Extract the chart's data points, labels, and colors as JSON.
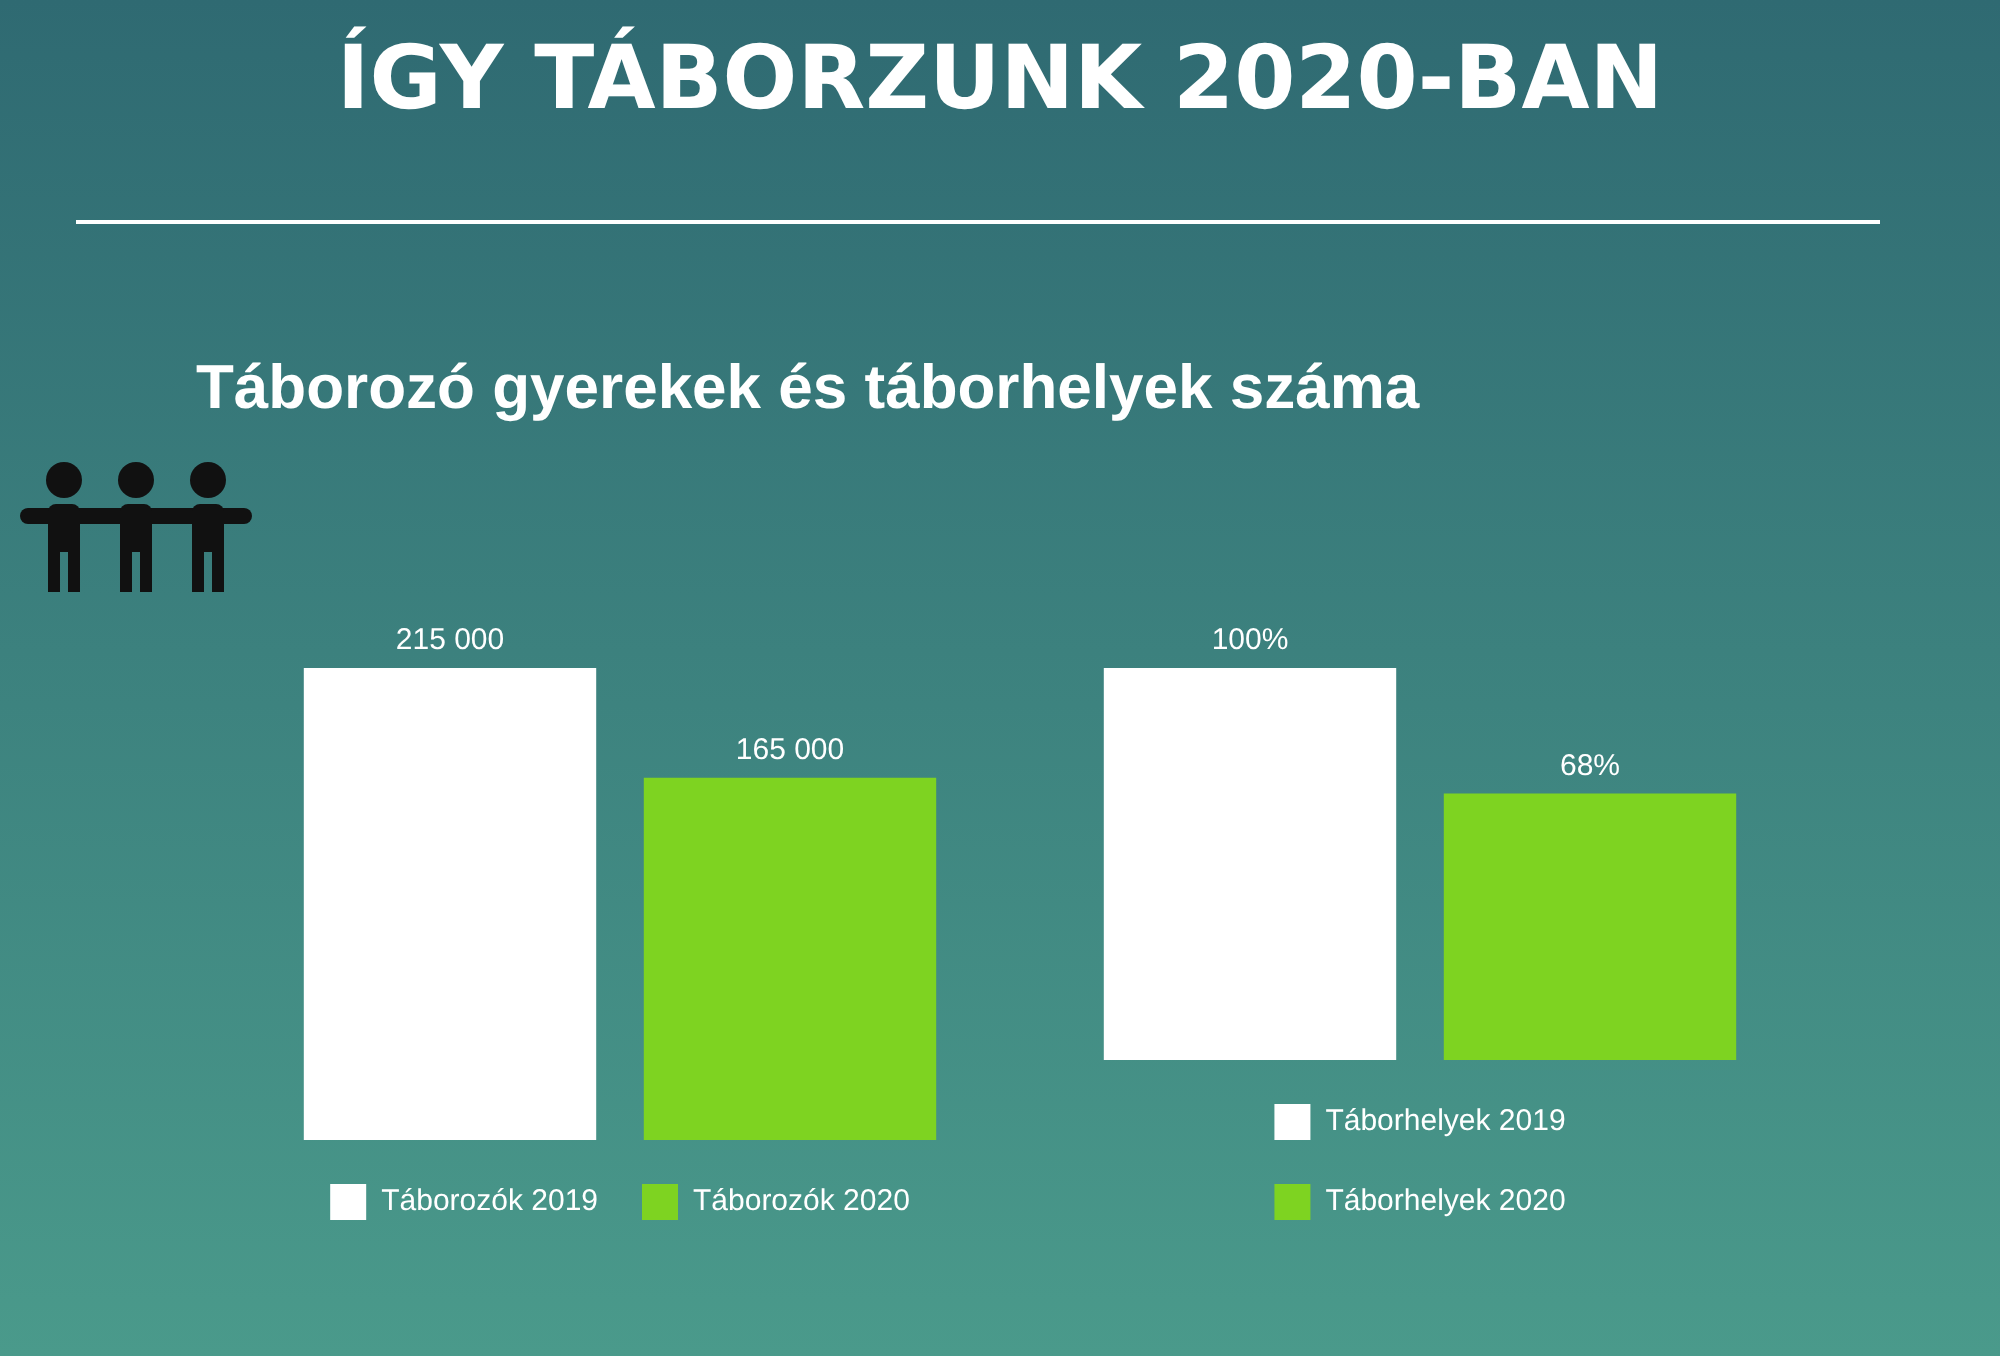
{
  "chart_data": [
    {
      "type": "bar",
      "title": "ÍGY TÁBORZUNK 2020-BAN",
      "subtitle": "Táborozó gyerekek és táborhelyek száma",
      "categories": [
        null
      ],
      "series": [
        {
          "name": "Táborozók 2019",
          "color": "#ffffff",
          "values": [
            215000
          ],
          "value_labels": [
            "215 000"
          ]
        },
        {
          "name": "Táborozók 2020",
          "color": "#7ed321",
          "values": [
            165000
          ],
          "value_labels": [
            "165 000"
          ]
        }
      ],
      "data_labels": true,
      "legend": "bottom"
    },
    {
      "type": "bar",
      "categories": [
        null
      ],
      "series": [
        {
          "name": "Táborhelyek 2019",
          "color": "#ffffff",
          "values": [
            100
          ],
          "value_labels": [
            "100%"
          ]
        },
        {
          "name": "Táborhelyek 2020",
          "color": "#7ed321",
          "values": [
            68
          ],
          "value_labels": [
            "68%"
          ]
        }
      ],
      "data_labels": true,
      "legend": "bottom"
    }
  ]
}
